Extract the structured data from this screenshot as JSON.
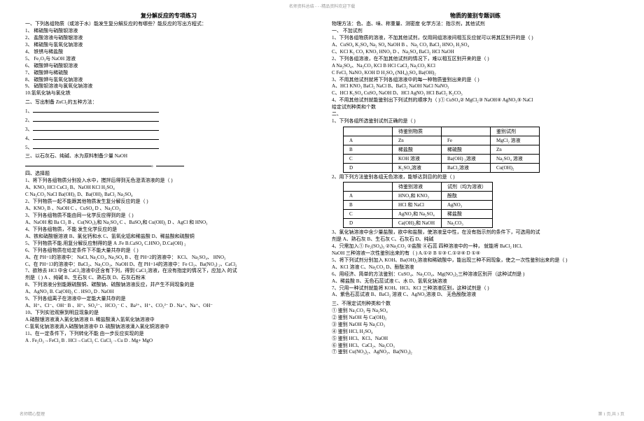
{
  "header": "名师资料总结 - - -精品资料欢迎下载",
  "footer_left": "名师精心整理",
  "footer_right": "第 1 页,共 3 页",
  "left": {
    "title": "复分解反应的专项练习",
    "q1_intro": "一、下列各组物质（或溶于水）能发生复分解反应的有哪些？能反应的写出方程式：",
    "q1_items": [
      "1、 稀硫酸与硝酸钡溶液",
      "2、 盐酸溶液与硝酸银溶液",
      "3、 稀硫酸与氢氧化钠溶液",
      "4、 铁锈与稀盐酸",
      "5、 Fe₂O₃与 NaOH 溶液",
      "6、 碳酸钾与硝酸钡溶液",
      "7、 碳酸钾与稀硫酸",
      "8、 碳酸钾与氢氧化钠溶液",
      "9、 硝酸钡溶液与氯氧化钠溶液",
      "10.氢氧化钠与氯化铁"
    ],
    "q2_intro": "二、写出制备  ZnCl₂的五种方法：",
    "q3_intro": "三、以石灰石、纯碱、水为原料制备少量    NaOH",
    "q4_title": "四、选择题",
    "q4_items": [
      "1、将下列各组物质分别投入水中，搅拌后得到无色澄清溶液的是（     )",
      "A、KNO₃  HCl   CuCl₂        B、NaOH   KCl     H₂SO₄",
      "C  Na₂CO₃  NaCl   Ba(OH)₂   D、Ba(OH)₂  BaCl₂   Na₂SO₄",
      "2、下列物质一起不能跟其他物质发生复分解反应的是（    )",
      "A、KNO₃  B 、NaOH    C 、CuSO₄     D 、Na₂CO₃",
      "3、下列各组物质不能由同一化学反应得到的是（   )",
      "A、NaOH 和 Ba Cl₂   B 、Cu(NO₃)₂和 Na₂SO₄   C 、BaSO₄和 Cu(OH)₂  D 、AgCl 和 HNO₃",
      "4、下列各组物质，不能  发生化学反应的是",
      "A、铁和硝酸银溶液   B、氯化钙和水   C、氢氧化铝和稀盐酸   D、稀盐酸和硫酸铜",
      "5、下列物质不能.用复分解反应制得的是   A .Fe  B.CaSO₄ C.HNO₃  D.Ca(OH) ₂",
      "6、下列各组物质在给定条件下不能大量共存的是（  )",
      "A、在 PH=1的溶液中： NaCl, Na₂CO₃, Na₂SO₄   B 、在 PH=2的溶液中： KCl、 Na₂SO₄、 HNO₃",
      "C、在 PH=13的溶液中：BaCl₂、Na₂CO₃、NaOH  D、在 PH=14的溶液中：Fe Cl₃、Ba(NO₃) ₂、CaCl₂",
      "7、欲除去 HCl 中含 CaCl₂溶液中还含有下列，得到   CaCl₂溶液，在没有指定的情况下，应加入 的试",
      "剂是（  ) A 、纯碱    B、生石灰   C、熟石灰    D、石灰石粉末",
      "8、下列溶液分别能跟硫酸铜、碳酸钠、硫酸钠溶液反应，并产生不同现象的是",
      "A、AgNO₃    B. Ca(OH)₂    C . HSO₄    D . NaOH",
      "9、下列各组离子在溶液中一定能大量共存的是",
      "A、H⁺、Cl⁻、OH⁻   B 、H⁺、SO₄²⁻、HCO₃⁻   C 、Ba²⁺、H⁺、CO₃²⁻  D . Na⁺、Na⁺、OH⁻",
      "10、下列实验观察到明显现象的是",
      "A.硝酸银溶液滴入氯化钠溶液        B. 稀盐酸滴入氢氧化钠溶液中",
      "C.氢氧化钠溶液滴入硝酸钠溶液中    D. 硫酸钠溶液滴入氯化铜溶液中",
      "11、在一定条件下，下列转化不能   由一步反应实现的是",
      "   A . Fe₂O₃→FeCl₃    B . HCl→CuCl₂   C. CuCl₂→Cu     D . Mg+ MgO"
    ]
  },
  "right": {
    "title": "物质的鉴别专题训练",
    "line_methods": "物理方法：色、态、味、称重量、测密度         化学方法：指示剂，其他试剂",
    "sec1_title": "一、   不加试剂",
    "sec1_items": [
      "1、下列各组物质的溶液，不加其他试剂，仅用同组溶液间相互反应就可以将其区别开的是（   )",
      "A、CuSO₄   K₂SO₄   Na₂ SO₄  NaOH      B 、Na₂ CO₃   BaCl₂   HNO₃  H₂SO₄",
      "C、KCl      K₂ CO₃   KNO₃  HNO₃     D  、Na₂SO₄  BaCl₂   HCl     NaOH",
      "2、下列各组溶液，在不加其他试剂的情况下，难以相互区别开来的是（   )",
      "A   Na₂SO₄、Na₂CO₃    KCl      B   HCl     CaCl₂   Na₂CO₃   KCl",
      "C   FeCl₃   NaNO₃    KOH      D   H₂SO₄   (NH₄)₂SO₄    Ba(OH)₂",
      "3、不用其他试剂就将下列各组溶液中的每一种物质鉴别出来的是（   )",
      "A、HCl    KNO₃    BaCl₂   NaCl    B、BaCl₂  NaOH   NaCl    NaNO₃",
      "C、HCl   K₂SO₄   CuSO₄   NaOH    D、HCl   AgNO₃  HCl    BaCl₂  K₂CO₃",
      "4、不用其他试剂就能鉴别出下列试剂的顺序为（     )① CuSO₄② MgCl₂③ NaOH④ AgNO₃⑤ NaCl",
      "   给定试剂种类和个数"
    ],
    "sec2_title": "二、",
    "sec2_q1": "1、下列各组所选鉴别试剂正确的是（    )",
    "table1": {
      "header": [
        "",
        "待鉴别物质",
        "",
        "鉴别试剂"
      ],
      "rows": [
        [
          "A",
          "Zn",
          "Fe",
          "MgCl₂ 溶液"
        ],
        [
          "B",
          "稀盐酸",
          "稀硫酸",
          "Zn"
        ],
        [
          "C",
          "KOH 溶液",
          "Ba(OH) ₂溶液",
          "Na₂SO₄ 溶液"
        ],
        [
          "D",
          "K₂SO₄溶液",
          "BaCl₂溶液",
          "Cu(OH)₂"
        ]
      ]
    },
    "sec2_q2": "2、用下列方法鉴别各组无色溶液，能够达到目的的是（ )",
    "table2": {
      "header": [
        "",
        "待鉴别溶液",
        "试剂（均为溶液）"
      ],
      "rows": [
        [
          "A",
          "HNO₃和 KNO₃",
          "酚酞"
        ],
        [
          "B",
          "HCl 和  NaCl",
          "AgNO₃"
        ],
        [
          "C",
          "AgNO₃和 Na₂SO₄",
          "稀盐酸"
        ],
        [
          "D",
          "Ca(OH)₂和 NaOH",
          "Na₂CO₃"
        ]
      ]
    },
    "sec3_items": [
      "3、氯化钠溶液中含少量盐酸，欲中和盐酸，使溶液呈中性，在没有指示剂的条件下，可选用的试",
      "剂是          A、熟石灰    B、生石灰   C、石灰石    D、纯碱",
      "4、只需加入① Fe₂(SO₄)₃   ②Na₂CO₃   ②盐酸   ④石蕊 四种溶液中的一种， 就能将 BaCl₂ HCl,",
      "NaOH 三种溶液一次性鉴别出来的有（   ) A.①②   B ①③   C.①②④   D ①④",
      "5、将下列试剂分别加入 KOH、Ba(OH)₂溶液和稀硫酸中，能出现三种不同现象，使之一次性鉴别出来的是（   )",
      "A、KCl 溶液    C、Na₂CO₃    D、酚酞溶液",
      "6、用经济、简单的方法鉴别：CuSO₄、Na₂CO₄、Mg(NO₃)₂三种溶液区别开（这种试剂是   )",
      "A、稀盐酸    B、无色石蕊试液   C、水    D、氢氧化钠溶液",
      "7、只用一种试剂就能将 KOH、HCl、KCl 三种溶液区别，这种试剂是（   )",
      "A、紫色石蕊试液    B、BaCl₂ 溶液    C、AgNO₃溶液    D、 无色酚酞溶液"
    ],
    "sec4_title": "三、不限定试剂种类和个数",
    "sec4_items": [
      "① 鉴别  Na₂CO₃ 与 Na₂SO₄",
      "② 鉴别  NaOH 与 Ca(OH)₂",
      "③ 鉴别  NaOH 与 Na₂CO₃",
      "④ 鉴别  HCl, H₂SO₄",
      "⑤ 鉴别  HCl、KCl、NaOH",
      "⑥ 鉴别  HCl、CaCl₂、Na₂CO₃",
      "⑦ 鉴别  Cu(NO₃)₂、AgNO₃、Ba(NO₃)₂"
    ]
  }
}
